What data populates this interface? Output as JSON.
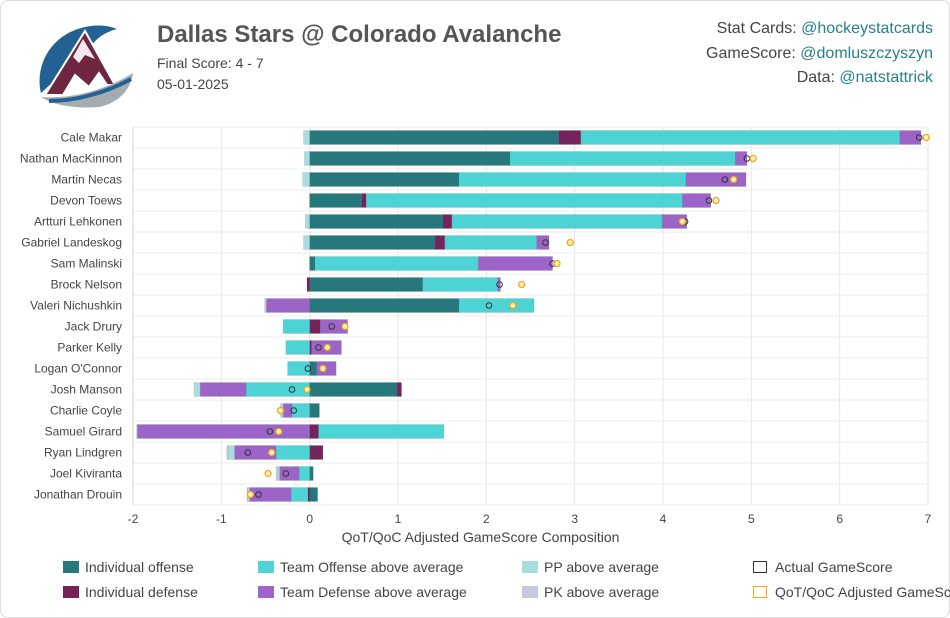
{
  "header": {
    "title": "Dallas Stars @ Colorado Avalanche",
    "final_score": "Final Score: 4 - 7",
    "date": "05-01-2025"
  },
  "credits": [
    {
      "label": "Stat Cards: ",
      "handle": "@hockeystatcards"
    },
    {
      "label": "GameScore: ",
      "handle": "@domluszczyszyn"
    },
    {
      "label": "Data: ",
      "handle": "@natstattrick"
    }
  ],
  "colors": {
    "individual_offense": "#27787d",
    "individual_defense": "#74235b",
    "team_offense": "#4dd3d3",
    "team_defense": "#9b64c6",
    "pp": "#a8dde0",
    "pk": "#c8c8dc",
    "actual_marker": "#333333",
    "adjusted_marker": "#f0a818",
    "logo_maroon": "#6f2640",
    "logo_blue": "#236192"
  },
  "chart_data": {
    "type": "bar",
    "orientation": "horizontal",
    "stacked": true,
    "xlabel": "QoT/QoC Adjusted GameScore Composition",
    "xlim": [
      -2,
      7
    ],
    "xticks": [
      "-2",
      "-1",
      "0",
      "1",
      "2",
      "3",
      "4",
      "5",
      "6",
      "7"
    ],
    "grid": true,
    "legend_position": "bottom",
    "categories": [
      "Cale Makar",
      "Nathan MacKinnon",
      "Martin Necas",
      "Devon Toews",
      "Artturi Lehkonen",
      "Gabriel Landeskog",
      "Sam Malinski",
      "Brock Nelson",
      "Valeri Nichushkin",
      "Jack Drury",
      "Parker Kelly",
      "Logan O'Connor",
      "Josh Manson",
      "Charlie Coyle",
      "Samuel Girard",
      "Ryan Lindgren",
      "Joel Kiviranta",
      "Jonathan Drouin"
    ],
    "series": [
      {
        "name": "Individual offense",
        "key": "individual_offense",
        "values": [
          2.82,
          2.27,
          1.69,
          0.59,
          1.51,
          1.42,
          0.06,
          1.28,
          1.69,
          0.0,
          0.0,
          0.08,
          0.99,
          0.11,
          0.0,
          0.0,
          0.04,
          0.09
        ]
      },
      {
        "name": "Individual defense",
        "key": "individual_defense",
        "values": [
          0.25,
          0.0,
          0.0,
          0.05,
          0.1,
          0.11,
          0.0,
          -0.03,
          0.0,
          0.12,
          0.02,
          0.0,
          0.05,
          0.0,
          0.1,
          0.15,
          0.0,
          -0.02
        ]
      },
      {
        "name": "Team Offense above average",
        "key": "team_offense",
        "values": [
          3.61,
          2.55,
          2.57,
          3.58,
          2.38,
          1.04,
          1.85,
          0.85,
          0.85,
          -0.3,
          -0.27,
          -0.25,
          -0.72,
          -0.2,
          1.42,
          -0.38,
          -0.12,
          -0.19
        ]
      },
      {
        "name": "Team Defense above average",
        "key": "team_defense",
        "values": [
          0.24,
          0.13,
          0.68,
          0.32,
          0.28,
          0.14,
          0.84,
          0.03,
          -0.49,
          0.31,
          0.34,
          0.22,
          -0.52,
          -0.1,
          -1.95,
          -0.47,
          -0.22,
          -0.47
        ]
      },
      {
        "name": "PP above average",
        "key": "pp",
        "values": [
          -0.07,
          -0.06,
          -0.08,
          0.0,
          -0.05,
          -0.07,
          0.0,
          0.0,
          0.0,
          0.0,
          0.0,
          0.0,
          -0.07,
          -0.02,
          0.0,
          -0.07,
          -0.02,
          -0.02
        ]
      },
      {
        "name": "PK above average",
        "key": "pk",
        "values": [
          0.0,
          0.0,
          0.0,
          0.0,
          0.0,
          0.0,
          0.0,
          0.0,
          -0.02,
          0.0,
          0.0,
          0.0,
          0.0,
          -0.01,
          -0.01,
          -0.02,
          -0.02,
          -0.01
        ]
      }
    ],
    "actual_gamescore": [
      6.9,
      4.95,
      4.7,
      4.52,
      4.25,
      2.67,
      2.75,
      2.15,
      2.03,
      0.25,
      0.1,
      -0.02,
      -0.2,
      -0.18,
      -0.45,
      -0.7,
      -0.27,
      -0.58
    ],
    "adjusted_gamescore": [
      6.98,
      5.02,
      4.8,
      4.6,
      4.22,
      2.95,
      2.8,
      2.4,
      2.3,
      0.4,
      0.2,
      0.15,
      -0.03,
      -0.33,
      -0.35,
      -0.43,
      -0.47,
      -0.67
    ],
    "legend": [
      {
        "label": "Individual offense",
        "swatch": "individual_offense"
      },
      {
        "label": "Team Offense above average",
        "swatch": "team_offense"
      },
      {
        "label": "PP above average",
        "swatch": "pp"
      },
      {
        "label": "Actual GameScore",
        "swatch": "actual_marker"
      },
      {
        "label": "Individual defense",
        "swatch": "individual_defense"
      },
      {
        "label": "Team Defense above average",
        "swatch": "team_defense"
      },
      {
        "label": "PK above average",
        "swatch": "pk"
      },
      {
        "label": "QoT/QoC Adjusted GameScore",
        "swatch": "adjusted_marker"
      }
    ]
  }
}
